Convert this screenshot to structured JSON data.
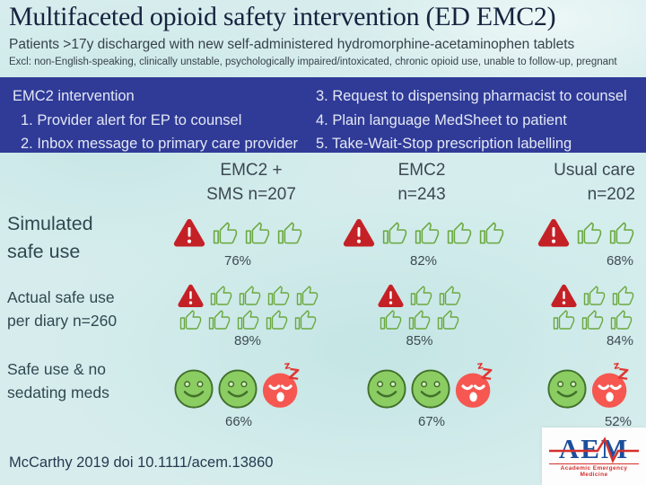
{
  "header": {
    "title": "Multifaceted opioid safety intervention (ED EMC2)",
    "subtitle": "Patients >17y discharged with new self-administered hydromorphine-acetaminophen tablets",
    "exclusions": "Excl: non-English-speaking, clinically unstable, psychologically impaired/intoxicated, chronic opioid use, unable to follow-up, pregnant"
  },
  "intervention_box": {
    "heading": "EMC2 intervention",
    "items_left": [
      "1. Provider alert for EP to counsel",
      "2. Inbox message to primary care provider"
    ],
    "items_right": [
      "3. Request to dispensing pharmacist to counsel",
      "4. Plain language MedSheet to patient",
      "5. Take-Wait-Stop prescription labelling"
    ]
  },
  "columns": [
    {
      "line1": "EMC2 +",
      "line2": "SMS n=207"
    },
    {
      "line1": "EMC2",
      "line2": "n=243"
    },
    {
      "line1": "Usual care",
      "line2": "n=202"
    }
  ],
  "rows": [
    {
      "label_lines": [
        "Simulated",
        "safe use"
      ],
      "cells": [
        {
          "lines": [
            [
              "warning",
              "thumb",
              "thumb",
              "thumb"
            ]
          ],
          "percent": "76%"
        },
        {
          "lines": [
            [
              "warning",
              "thumb",
              "thumb",
              "thumb",
              "thumb"
            ]
          ],
          "percent": "82%"
        },
        {
          "lines": [
            [
              "warning",
              "thumb",
              "thumb"
            ]
          ],
          "percent": "68%"
        }
      ]
    },
    {
      "label_lines": [
        "Actual safe use",
        "per diary n=260"
      ],
      "cells": [
        {
          "lines": [
            [
              "warning",
              "thumb",
              "thumb",
              "thumb",
              "thumb"
            ],
            [
              "thumb",
              "thumb",
              "thumb",
              "thumb",
              "thumb"
            ]
          ],
          "percent": "89%"
        },
        {
          "lines": [
            [
              "warning",
              "thumb",
              "thumb"
            ],
            [
              "thumb",
              "thumb",
              "thumb"
            ]
          ],
          "percent": "85%"
        },
        {
          "lines": [
            [
              "warning",
              "thumb",
              "thumb"
            ],
            [
              "thumb",
              "thumb",
              "thumb"
            ]
          ],
          "percent": "84%"
        }
      ]
    },
    {
      "label_lines": [
        "Safe use & no",
        "sedating meds"
      ],
      "cells": [
        {
          "lines": [
            [
              "smile",
              "smile",
              "sleepy"
            ]
          ],
          "percent": "66%"
        },
        {
          "lines": [
            [
              "smile",
              "smile",
              "sleepy"
            ]
          ],
          "percent": "67%"
        },
        {
          "lines": [
            [
              "smile",
              "sleepy"
            ]
          ],
          "percent": "52%"
        }
      ]
    }
  ],
  "footer": {
    "citation": "McCarthy 2019 doi 10.1111/acem.13860"
  },
  "logo": {
    "acronym": "AEM",
    "name": "Academic Emergency Medicine"
  },
  "colors": {
    "background": "#d7eded",
    "banner_blue": "#2f3b97",
    "warning_red": "#c42127",
    "thumb_green": "#6aa83e",
    "smile_green": "#8bcd62",
    "sleepy_coral": "#f65750",
    "logo_blue": "#1c4f9c",
    "logo_red": "#d6302c"
  },
  "chart_data": {
    "type": "table",
    "title": "Multifaceted opioid safety intervention (ED EMC2)",
    "categories": [
      "EMC2 + SMS n=207",
      "EMC2 n=243",
      "Usual care n=202"
    ],
    "series": [
      {
        "name": "Simulated safe use",
        "values": [
          76,
          82,
          68
        ]
      },
      {
        "name": "Actual safe use per diary n=260",
        "values": [
          89,
          85,
          84
        ]
      },
      {
        "name": "Safe use & no sedating meds",
        "values": [
          66,
          67,
          52
        ]
      }
    ],
    "unit": "%"
  }
}
